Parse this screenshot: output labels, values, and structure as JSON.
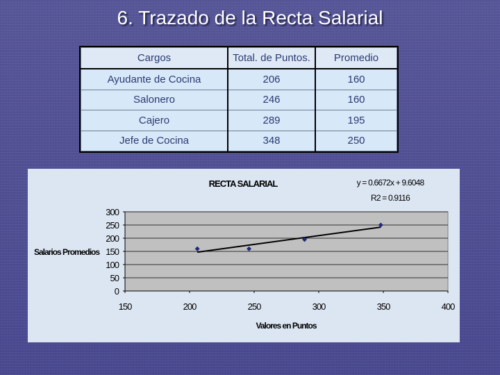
{
  "slide": {
    "title": "6. Trazado de la Recta Salarial"
  },
  "table": {
    "headers": [
      "Cargos",
      "Total. de Puntos.",
      "Promedio"
    ],
    "rows": [
      {
        "cargo": "Ayudante de Cocina",
        "puntos": "206",
        "promedio": "160"
      },
      {
        "cargo": "Salonero",
        "puntos": "246",
        "promedio": "160"
      },
      {
        "cargo": "Cajero",
        "puntos": "289",
        "promedio": "195"
      },
      {
        "cargo": "Jefe de Cocina",
        "puntos": "348",
        "promedio": "250"
      }
    ]
  },
  "chart_data": {
    "type": "scatter",
    "title": "RECTA SALARIAL",
    "xlabel": "Valores en Puntos",
    "ylabel": "Salarios Promedios",
    "xlim": [
      150,
      400
    ],
    "ylim": [
      0,
      300
    ],
    "x_ticks": [
      150,
      200,
      250,
      300,
      350,
      400
    ],
    "y_ticks": [
      0,
      50,
      100,
      150,
      200,
      250,
      300
    ],
    "grid": true,
    "points": [
      {
        "x": 206,
        "y": 160
      },
      {
        "x": 246,
        "y": 160
      },
      {
        "x": 289,
        "y": 195
      },
      {
        "x": 348,
        "y": 250
      }
    ],
    "trendline": {
      "slope": 0.6672,
      "intercept": 9.6048,
      "x_range": [
        206,
        348
      ]
    },
    "equation": "y = 0.6672x + 9.6048",
    "r_squared": "R2 = 0.9116",
    "colors": {
      "marker": "#1f2a78",
      "trendline": "#000000",
      "plot_bg": "#c0c0c0",
      "panel_bg": "#dce6f2"
    }
  }
}
